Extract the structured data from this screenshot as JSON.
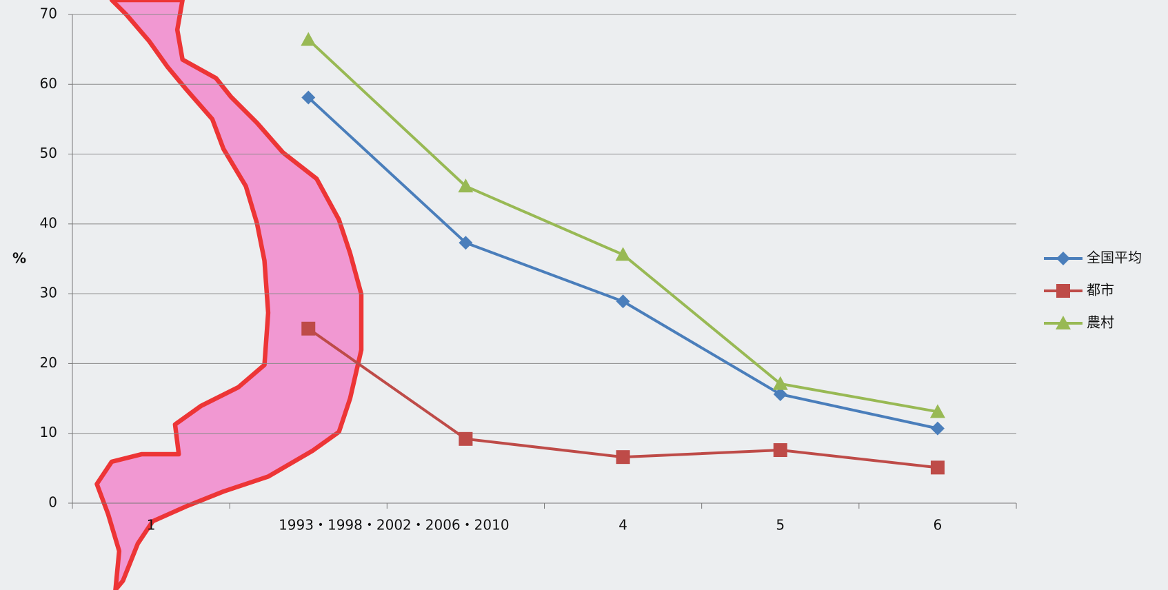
{
  "chart_data": {
    "type": "line",
    "y_label": "%",
    "categories": [
      "1",
      null,
      null,
      "4",
      "5",
      "6"
    ],
    "annotation": "1993・1998・2002・2006・2010",
    "ylim": [
      0,
      70
    ],
    "yticks": [
      0,
      10,
      20,
      30,
      40,
      50,
      60,
      70
    ],
    "grid": true,
    "legend": "right",
    "series": [
      {
        "name": "全国平均",
        "color": "#4a7ebb",
        "marker": "diamond",
        "values": [
          null,
          58.1,
          37.3,
          28.9,
          15.6,
          10.7
        ]
      },
      {
        "name": "都市",
        "color": "#be4b48",
        "marker": "square",
        "values": [
          null,
          25.0,
          9.2,
          6.6,
          7.6,
          5.1
        ]
      },
      {
        "name": "農村",
        "color": "#98b954",
        "marker": "triangle",
        "values": [
          null,
          66.4,
          45.4,
          35.6,
          17.1,
          13.1
        ]
      }
    ]
  }
}
